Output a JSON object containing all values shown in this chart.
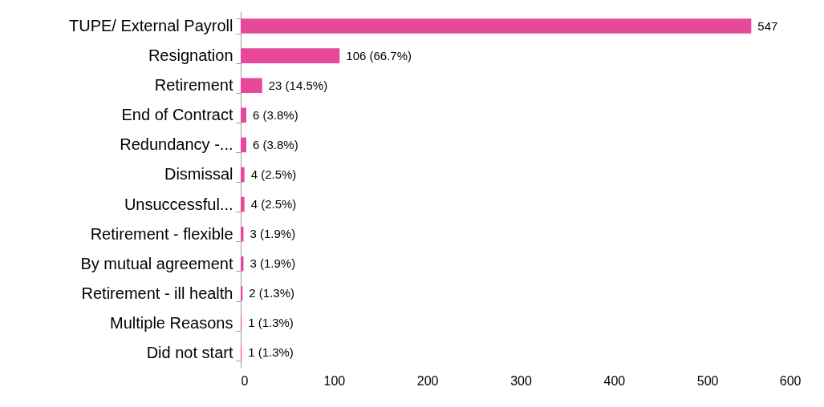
{
  "chart_data": {
    "type": "bar",
    "orientation": "horizontal",
    "categories": [
      "TUPE/ External Payroll",
      "Resignation",
      "Retirement",
      "End of Contract",
      "Redundancy -...",
      "Dismissal",
      "Unsuccessful...",
      "Retirement - flexible",
      "By mutual agreement",
      "Retirement - ill health",
      "Multiple Reasons",
      "Did not start"
    ],
    "values": [
      547,
      106,
      23,
      6,
      6,
      4,
      4,
      3,
      3,
      2,
      1,
      1
    ],
    "value_labels": [
      "547",
      "106  (66.7%)",
      "23  (14.5%)",
      "6  (3.8%)",
      "6  (3.8%)",
      "4  (2.5%)",
      "4  (2.5%)",
      "3  (1.9%)",
      "3  (1.9%)",
      "2  (1.3%)",
      "1  (1.3%)",
      "1  (1.3%)"
    ],
    "color": "#e8489a",
    "xlim": [
      0,
      600
    ],
    "xticks": [
      0,
      100,
      200,
      300,
      400,
      500,
      600
    ],
    "grid": false
  }
}
